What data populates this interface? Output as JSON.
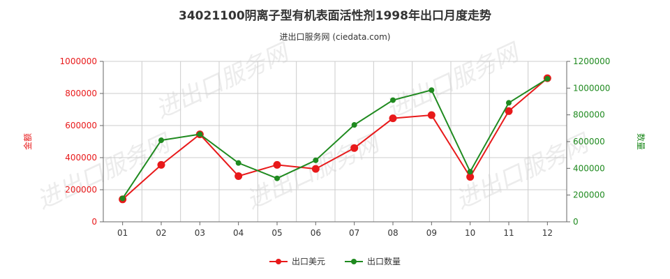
{
  "title": "34021100阴离子型有机表面活性剂1998年出口月度走势",
  "subtitle": "进出口服务网 (ciedata.com)",
  "watermark": "进出口服务网",
  "colors": {
    "value": "#e8191a",
    "quantity": "#1f8a1f",
    "grid": "#cccccc",
    "axis": "#666666"
  },
  "chart_data": {
    "type": "line",
    "categories": [
      "01",
      "02",
      "03",
      "04",
      "05",
      "06",
      "07",
      "08",
      "09",
      "10",
      "11",
      "12"
    ],
    "y_left": {
      "label": "金额",
      "range": [
        0,
        1000000
      ],
      "ticks": [
        "0",
        "200000",
        "400000",
        "600000",
        "800000",
        "1000000"
      ],
      "color": "#e8191a"
    },
    "y_right": {
      "label": "数量",
      "range": [
        0,
        1200000
      ],
      "ticks": [
        "0",
        "200000",
        "400000",
        "600000",
        "800000",
        "1000000",
        "1200000"
      ],
      "color": "#1f8a1f"
    },
    "series": [
      {
        "name": "出口美元",
        "axis": "left",
        "color": "#e8191a",
        "values": [
          140000,
          355000,
          545000,
          285000,
          355000,
          330000,
          460000,
          645000,
          665000,
          280000,
          690000,
          895000
        ]
      },
      {
        "name": "出口数量",
        "axis": "right",
        "color": "#1f8a1f",
        "values": [
          175000,
          610000,
          655000,
          440000,
          325000,
          460000,
          725000,
          910000,
          985000,
          375000,
          890000,
          1070000
        ]
      }
    ],
    "grid": true,
    "legend": "bottom-center"
  }
}
